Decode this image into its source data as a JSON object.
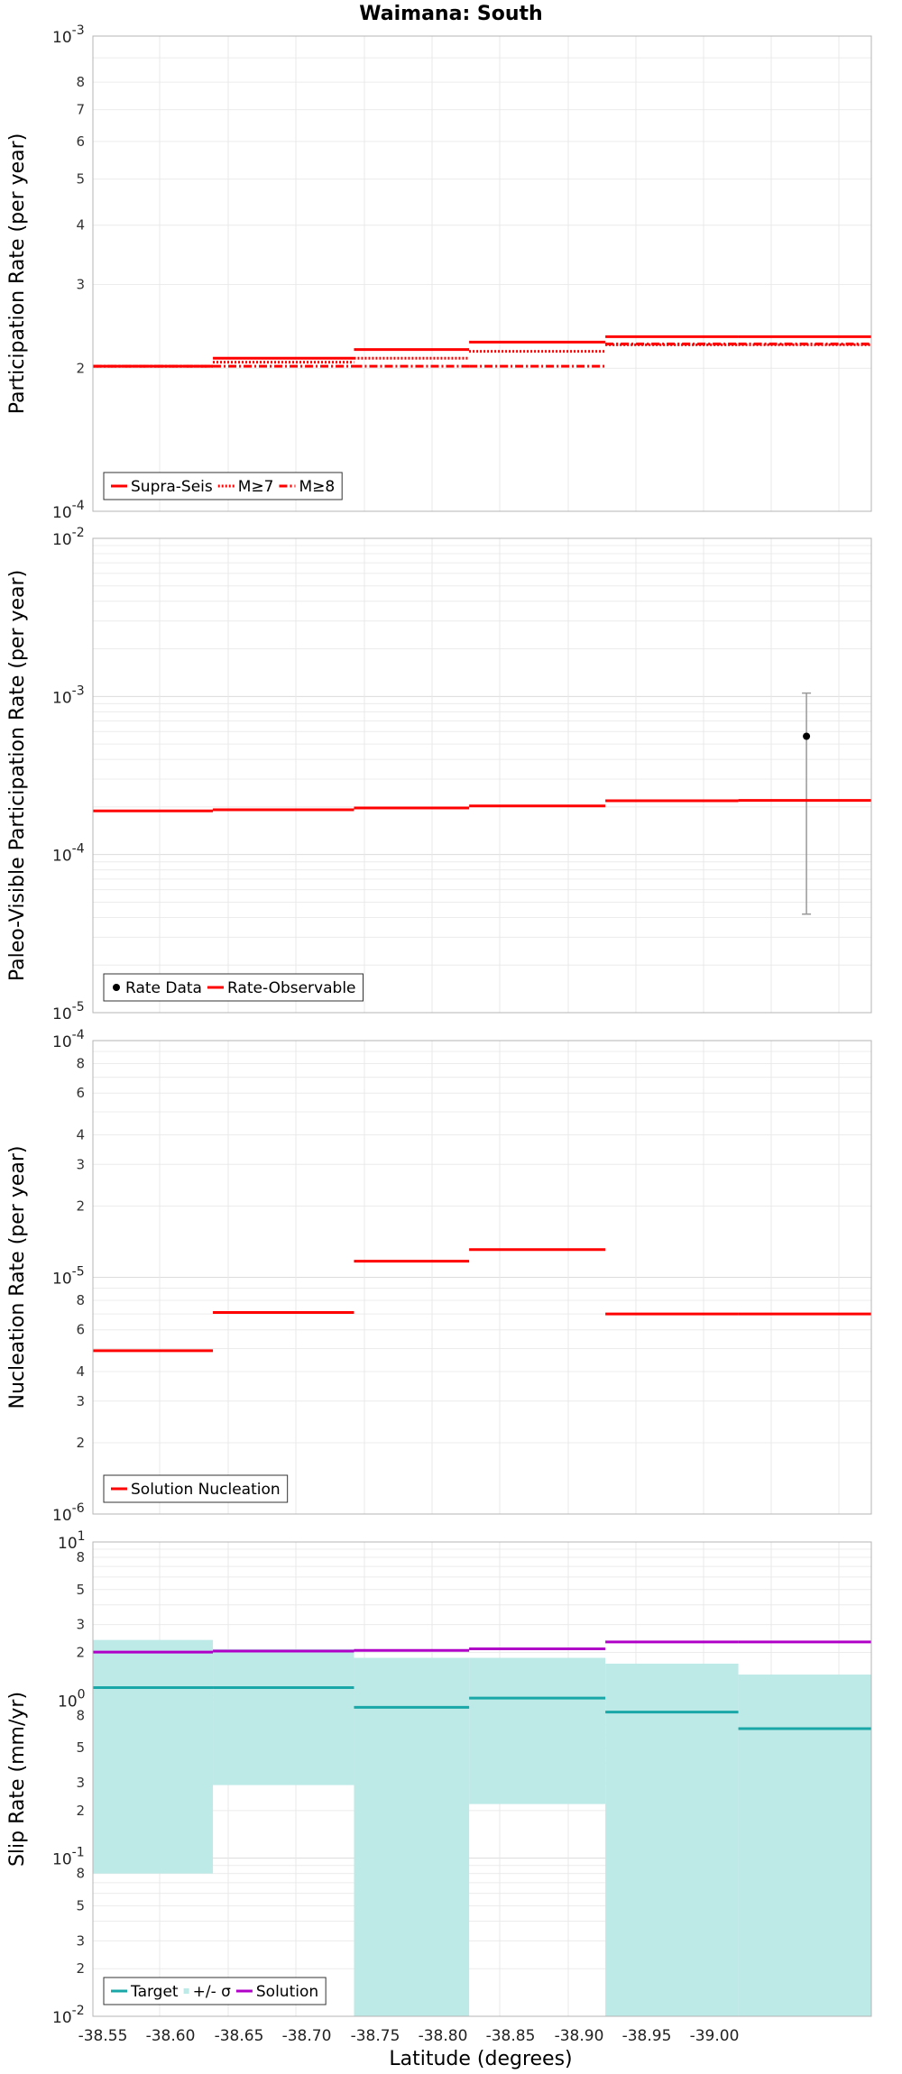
{
  "title": "Waimana: South",
  "xlabel": "Latitude (degrees)",
  "colors": {
    "red": "#ff0000",
    "teal": "#1aa7a7",
    "band": "#bde9e7",
    "magenta": "#b000c8",
    "black": "#000000",
    "gray": "#999999"
  },
  "chart_data": [
    {
      "type": "line",
      "ylabel": "Participation Rate (per year)",
      "yscale": "log",
      "ylim": [
        0.0001,
        0.001
      ],
      "xlim": [
        -38.55,
        -39.03
      ],
      "x_tick_labels": [
        "-38.55",
        "-38.60",
        "-38.65",
        "-38.70",
        "-38.75",
        "-38.80",
        "-38.85",
        "-38.90",
        "-38.95",
        "-39.00"
      ],
      "y_major_labels": [
        {
          "value": 0.001,
          "base": "10",
          "exp": "-3"
        },
        {
          "value": 0.0001,
          "base": "10",
          "exp": "-4"
        }
      ],
      "y_minor_labels": [
        {
          "value": 0.0002,
          "label": "2"
        },
        {
          "value": 0.0003,
          "label": "3"
        },
        {
          "value": 0.0004,
          "label": "4"
        },
        {
          "value": 0.0005,
          "label": "5"
        },
        {
          "value": 0.0006,
          "label": "6"
        },
        {
          "value": 0.0007,
          "label": "7"
        },
        {
          "value": 0.0008,
          "label": "8"
        }
      ],
      "legend": {
        "placement": "bottom-left"
      },
      "series": [
        {
          "name": "Supra-Seis",
          "style": "solid",
          "segments": [
            [
              -38.55,
              -38.624,
              0.000202
            ],
            [
              -38.624,
              -38.711,
              0.00021
            ],
            [
              -38.711,
              -38.782,
              0.000219
            ],
            [
              -38.782,
              -38.866,
              0.000227
            ],
            [
              -38.866,
              -38.948,
              0.000233
            ],
            [
              -38.948,
              -39.03,
              0.000233
            ]
          ]
        },
        {
          "name": "M≥7",
          "style": "dotted",
          "segments": [
            [
              -38.55,
              -38.624,
              0.000202
            ],
            [
              -38.624,
              -38.711,
              0.000206
            ],
            [
              -38.711,
              -38.782,
              0.00021
            ],
            [
              -38.782,
              -38.866,
              0.000217
            ],
            [
              -38.866,
              -38.948,
              0.000224
            ],
            [
              -38.948,
              -39.03,
              0.000224
            ]
          ]
        },
        {
          "name": "M≥8",
          "style": "dashdot",
          "segments": [
            [
              -38.55,
              -38.624,
              0.000202
            ],
            [
              -38.624,
              -38.711,
              0.000202
            ],
            [
              -38.711,
              -38.782,
              0.000202
            ],
            [
              -38.782,
              -38.866,
              0.000202
            ],
            [
              -38.866,
              -38.948,
              0.000225
            ],
            [
              -38.948,
              -39.03,
              0.000225
            ]
          ]
        }
      ]
    },
    {
      "type": "line",
      "ylabel": "Paleo-Visible Participation Rate (per year)",
      "yscale": "log",
      "ylim": [
        1e-05,
        0.01
      ],
      "xlim": [
        -38.55,
        -39.03
      ],
      "x_tick_labels": [
        "-38.55",
        "-38.60",
        "-38.65",
        "-38.70",
        "-38.75",
        "-38.80",
        "-38.85",
        "-38.90",
        "-38.95",
        "-39.00"
      ],
      "y_major_labels": [
        {
          "value": 0.01,
          "base": "10",
          "exp": "-2"
        },
        {
          "value": 0.001,
          "base": "10",
          "exp": "-3"
        },
        {
          "value": 0.0001,
          "base": "10",
          "exp": "-4"
        },
        {
          "value": 1e-05,
          "base": "10",
          "exp": "-5"
        }
      ],
      "y_minor_labels": [],
      "legend": {
        "placement": "bottom-left"
      },
      "series": [
        {
          "name": "Rate Data",
          "style": "point",
          "points": [
            {
              "x": -38.99,
              "y": 0.00056,
              "low": 4.2e-05,
              "high": 0.00105
            }
          ]
        },
        {
          "name": "Rate-Observable",
          "style": "solid",
          "segments": [
            [
              -38.55,
              -38.624,
              0.000189
            ],
            [
              -38.624,
              -38.711,
              0.000192
            ],
            [
              -38.711,
              -38.782,
              0.000197
            ],
            [
              -38.782,
              -38.866,
              0.000203
            ],
            [
              -38.866,
              -38.948,
              0.000219
            ],
            [
              -38.948,
              -39.03,
              0.00022
            ]
          ]
        }
      ]
    },
    {
      "type": "line",
      "ylabel": "Nucleation Rate (per year)",
      "yscale": "log",
      "ylim": [
        1e-06,
        0.0001
      ],
      "xlim": [
        -38.55,
        -39.03
      ],
      "x_tick_labels": [
        "-38.55",
        "-38.60",
        "-38.65",
        "-38.70",
        "-38.75",
        "-38.80",
        "-38.85",
        "-38.90",
        "-38.95",
        "-39.00"
      ],
      "y_major_labels": [
        {
          "value": 0.0001,
          "base": "10",
          "exp": "-4"
        },
        {
          "value": 1e-05,
          "base": "10",
          "exp": "-5"
        },
        {
          "value": 1e-06,
          "base": "10",
          "exp": "-6"
        }
      ],
      "y_minor_labels": [
        {
          "value": 2e-06,
          "label": "2"
        },
        {
          "value": 3e-06,
          "label": "3"
        },
        {
          "value": 4e-06,
          "label": "4"
        },
        {
          "value": 6e-06,
          "label": "6"
        },
        {
          "value": 8e-06,
          "label": "8"
        },
        {
          "value": 2e-05,
          "label": "2"
        },
        {
          "value": 3e-05,
          "label": "3"
        },
        {
          "value": 4e-05,
          "label": "4"
        },
        {
          "value": 6e-05,
          "label": "6"
        },
        {
          "value": 8e-05,
          "label": "8"
        }
      ],
      "legend": {
        "placement": "bottom-left"
      },
      "series": [
        {
          "name": "Solution Nucleation",
          "style": "solid",
          "segments": [
            [
              -38.55,
              -38.624,
              4.9e-06
            ],
            [
              -38.624,
              -38.711,
              7.1e-06
            ],
            [
              -38.711,
              -38.782,
              1.17e-05
            ],
            [
              -38.782,
              -38.866,
              1.31e-05
            ],
            [
              -38.866,
              -38.948,
              7e-06
            ],
            [
              -38.948,
              -39.03,
              7e-06
            ]
          ]
        }
      ]
    },
    {
      "type": "line",
      "ylabel": "Slip Rate (mm/yr)",
      "yscale": "log",
      "ylim": [
        0.01,
        10
      ],
      "xlim": [
        -38.55,
        -39.03
      ],
      "x_tick_labels": [
        "-38.55",
        "-38.60",
        "-38.65",
        "-38.70",
        "-38.75",
        "-38.80",
        "-38.85",
        "-38.90",
        "-38.95",
        "-39.00"
      ],
      "y_major_labels": [
        {
          "value": 10,
          "base": "10",
          "exp": "1"
        },
        {
          "value": 1,
          "base": "10",
          "exp": "0"
        },
        {
          "value": 0.1,
          "base": "10",
          "exp": "-1"
        },
        {
          "value": 0.01,
          "base": "10",
          "exp": "-2"
        }
      ],
      "y_minor_labels": [
        {
          "value": 0.02,
          "label": "2"
        },
        {
          "value": 0.03,
          "label": "3"
        },
        {
          "value": 0.05,
          "label": "5"
        },
        {
          "value": 0.08,
          "label": "8"
        },
        {
          "value": 0.2,
          "label": "2"
        },
        {
          "value": 0.3,
          "label": "3"
        },
        {
          "value": 0.5,
          "label": "5"
        },
        {
          "value": 0.8,
          "label": "8"
        },
        {
          "value": 2,
          "label": "2"
        },
        {
          "value": 3,
          "label": "3"
        },
        {
          "value": 5,
          "label": "5"
        },
        {
          "value": 8,
          "label": "8"
        }
      ],
      "legend": {
        "placement": "bottom-left"
      },
      "band": {
        "name": "+/- σ",
        "segments": [
          [
            -38.55,
            -38.624,
            0.08,
            2.4
          ],
          [
            -38.624,
            -38.711,
            0.29,
            2.1
          ],
          [
            -38.711,
            -38.782,
            0.01,
            1.85
          ],
          [
            -38.782,
            -38.866,
            0.22,
            1.85
          ],
          [
            -38.866,
            -38.948,
            0.01,
            1.7
          ],
          [
            -38.948,
            -39.03,
            0.01,
            1.45
          ]
        ]
      },
      "series": [
        {
          "name": "Target",
          "style": "solid",
          "segments": [
            [
              -38.55,
              -38.624,
              1.2
            ],
            [
              -38.624,
              -38.711,
              1.2
            ],
            [
              -38.711,
              -38.782,
              0.9
            ],
            [
              -38.782,
              -38.866,
              1.03
            ],
            [
              -38.866,
              -38.948,
              0.84
            ],
            [
              -38.948,
              -39.03,
              0.66
            ]
          ]
        },
        {
          "name": "Solution",
          "style": "solid",
          "segments": [
            [
              -38.55,
              -38.624,
              2.01
            ],
            [
              -38.624,
              -38.711,
              2.04
            ],
            [
              -38.711,
              -38.782,
              2.06
            ],
            [
              -38.782,
              -38.866,
              2.11
            ],
            [
              -38.866,
              -38.948,
              2.33
            ],
            [
              -38.948,
              -39.03,
              2.33
            ]
          ]
        }
      ]
    }
  ]
}
